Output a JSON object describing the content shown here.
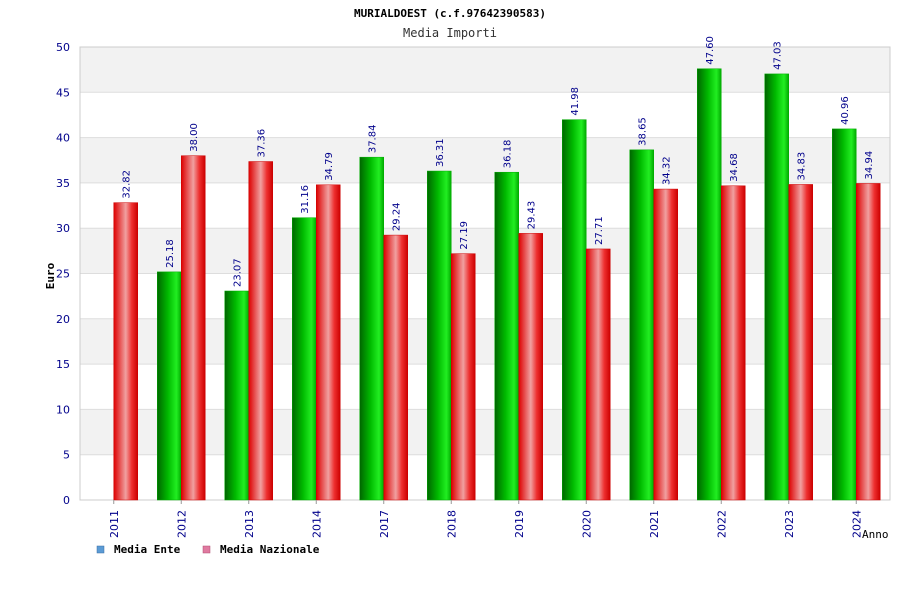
{
  "chart_data": {
    "type": "bar",
    "title": "MURIALDOEST (c.f.97642390583)",
    "subtitle": "Media Importi",
    "ylabel": "Euro",
    "xlabel": "Anno",
    "ylim": [
      0,
      50
    ],
    "yticks": [
      0,
      5,
      10,
      15,
      20,
      25,
      30,
      35,
      40,
      45,
      50
    ],
    "categories": [
      "2011",
      "2012",
      "2013",
      "2014",
      "2017",
      "2018",
      "2019",
      "2020",
      "2021",
      "2022",
      "2023",
      "2024"
    ],
    "series": [
      {
        "name": "Media Ente",
        "color": "#00cc00",
        "values": [
          null,
          25.18,
          23.07,
          31.16,
          37.84,
          36.31,
          36.18,
          41.98,
          38.65,
          47.6,
          47.03,
          40.96
        ],
        "labels": [
          "",
          "25.18",
          "23.07",
          "31.16",
          "37.84",
          "36.31",
          "36.18",
          "41.98",
          "38.65",
          "47.60",
          "47.03",
          "40.96"
        ]
      },
      {
        "name": "Media Nazionale",
        "color": "#ee0000",
        "values": [
          32.82,
          38.0,
          37.36,
          34.79,
          29.24,
          27.19,
          29.43,
          27.71,
          34.32,
          34.68,
          34.83,
          34.94
        ],
        "labels": [
          "32.82",
          "38.00",
          "37.36",
          "34.79",
          "29.24",
          "27.19",
          "29.43",
          "27.71",
          "34.32",
          "34.68",
          "34.83",
          "34.94"
        ]
      }
    ],
    "legend": {
      "placement": "bottom-left",
      "items": [
        {
          "label": "Media Ente",
          "color": "#5b9bd5"
        },
        {
          "label": "Media Nazionale",
          "color": "#e07aa0"
        }
      ]
    },
    "grid": true
  }
}
